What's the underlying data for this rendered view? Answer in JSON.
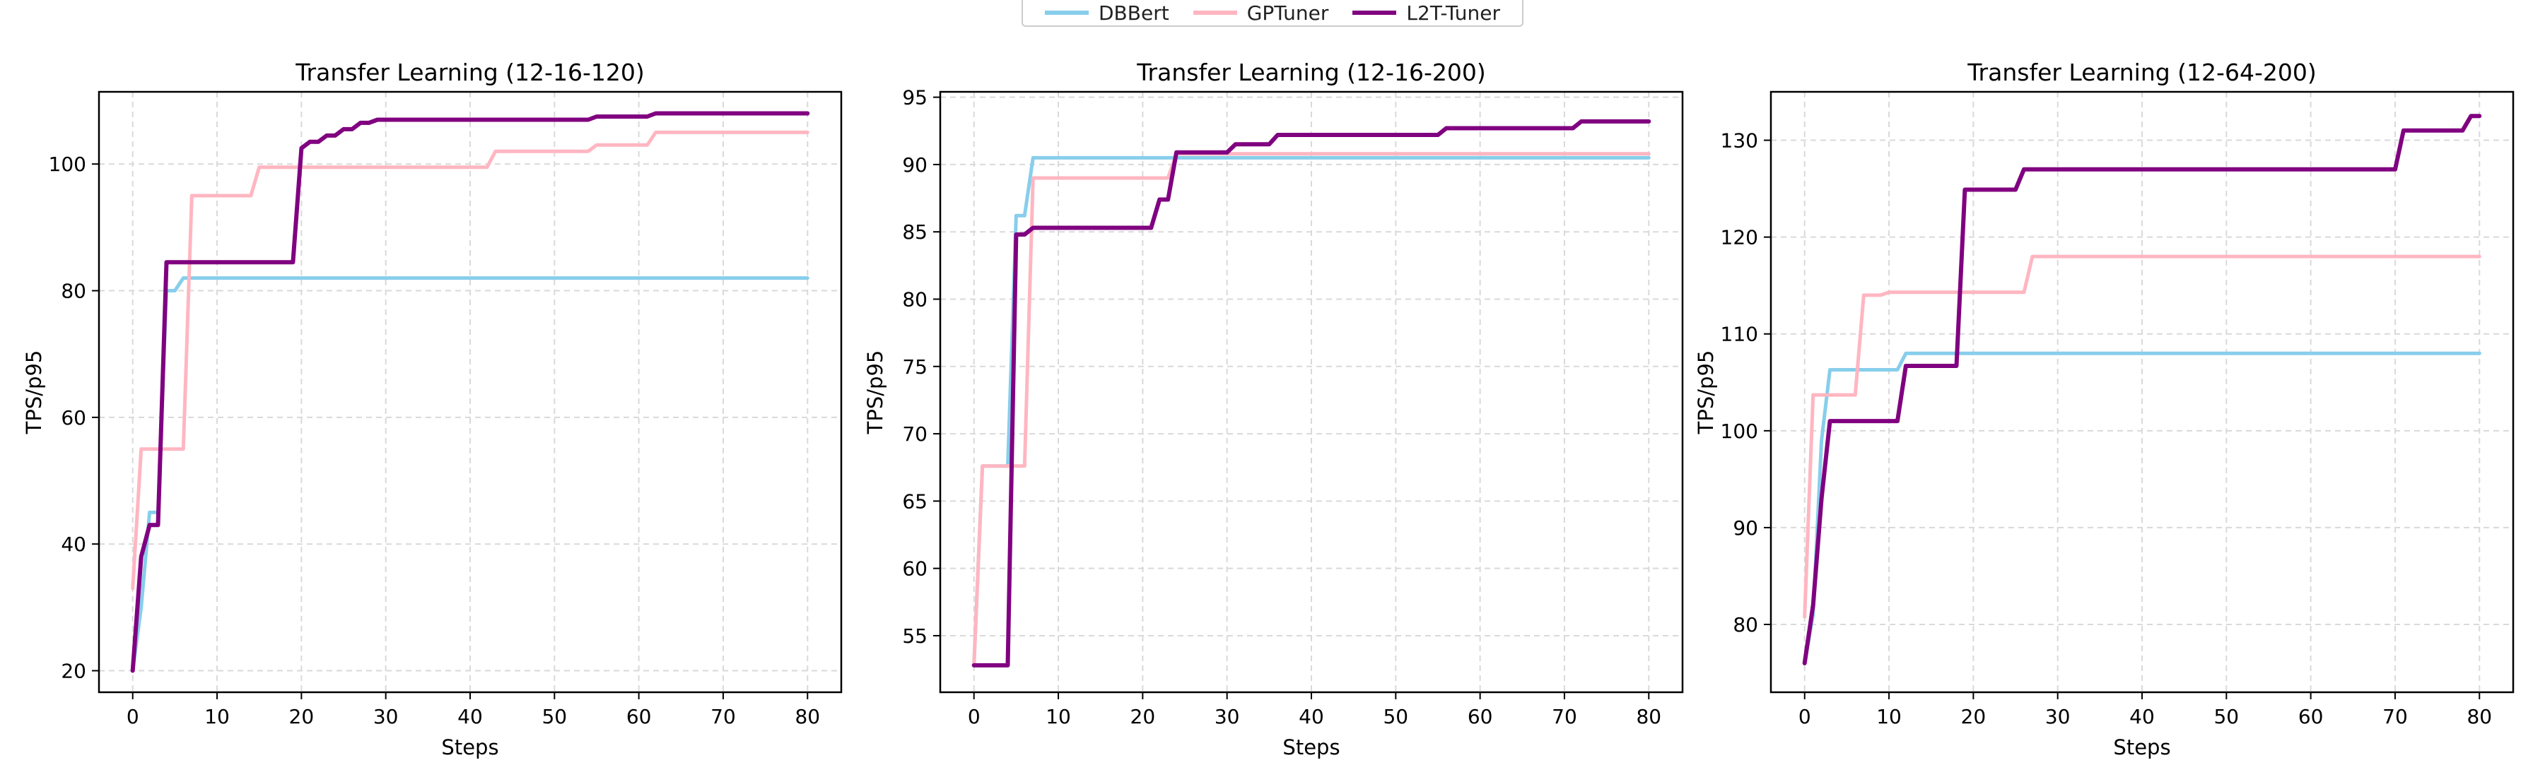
{
  "colors": {
    "DBBert": "#87ceeb",
    "GPTuner": "#ffb6c1",
    "L2T-Tuner": "#800080",
    "grid": "#d9d9d9",
    "axis": "#000000"
  },
  "legend": {
    "placement": "top-center",
    "entries": [
      "DBBert",
      "GPTuner",
      "L2T-Tuner"
    ]
  },
  "chart_data": [
    {
      "type": "line",
      "title": "Transfer Learning (12-16-120)",
      "xlabel": "Steps",
      "ylabel": "TPS/p95",
      "xlim": [
        -4,
        84
      ],
      "ylim": [
        16.6,
        111.4
      ],
      "xticks": [
        0,
        10,
        20,
        30,
        40,
        50,
        60,
        70,
        80
      ],
      "yticks": [
        20,
        40,
        60,
        80,
        100
      ],
      "grid": true,
      "series": [
        {
          "name": "DBBert",
          "x": [
            0,
            1,
            2,
            3,
            4,
            5,
            6,
            80
          ],
          "y": [
            20,
            30,
            45,
            45,
            80,
            80,
            82,
            82
          ]
        },
        {
          "name": "GPTuner",
          "x": [
            0,
            1,
            2,
            5,
            6,
            7,
            14,
            15,
            42,
            43,
            54,
            55,
            61,
            62,
            80
          ],
          "y": [
            33,
            55,
            55,
            55,
            55,
            95,
            95,
            99.5,
            99.5,
            102,
            102,
            103,
            103,
            105,
            105
          ]
        },
        {
          "name": "L2T-Tuner",
          "x": [
            0,
            1,
            2,
            3,
            4,
            19,
            20,
            21,
            22,
            23,
            24,
            25,
            26,
            27,
            28,
            29,
            54,
            55,
            61,
            62,
            80
          ],
          "y": [
            20,
            38,
            43,
            43,
            84.5,
            84.5,
            102.5,
            103.5,
            103.5,
            104.5,
            104.5,
            105.5,
            105.5,
            106.5,
            106.5,
            107,
            107,
            107.5,
            107.5,
            108,
            108
          ]
        }
      ]
    },
    {
      "type": "line",
      "title": "Transfer Learning (12-16-200)",
      "xlabel": "Steps",
      "ylabel": "TPS/p95",
      "xlim": [
        -4,
        84
      ],
      "ylim": [
        50.8,
        95.4
      ],
      "xticks": [
        0,
        10,
        20,
        30,
        40,
        50,
        60,
        70,
        80
      ],
      "yticks": [
        55,
        60,
        65,
        70,
        75,
        80,
        85,
        90,
        95
      ],
      "grid": true,
      "series": [
        {
          "name": "DBBert",
          "x": [
            0,
            1,
            4,
            5,
            6,
            7,
            80
          ],
          "y": [
            52.8,
            67.6,
            67.6,
            86.2,
            86.2,
            90.5,
            90.5
          ]
        },
        {
          "name": "GPTuner",
          "x": [
            0,
            1,
            5,
            6,
            7,
            23,
            24,
            80
          ],
          "y": [
            52.8,
            67.6,
            67.6,
            67.6,
            89,
            89,
            90.8,
            90.8
          ]
        },
        {
          "name": "L2T-Tuner",
          "x": [
            0,
            4,
            5,
            6,
            7,
            8,
            21,
            22,
            23,
            24,
            30,
            31,
            35,
            36,
            55,
            56,
            71,
            72,
            80
          ],
          "y": [
            52.8,
            52.8,
            84.8,
            84.8,
            85.3,
            85.3,
            85.3,
            87.4,
            87.4,
            90.9,
            90.9,
            91.5,
            91.5,
            92.2,
            92.2,
            92.7,
            92.7,
            93.2,
            93.2
          ]
        }
      ]
    },
    {
      "type": "line",
      "title": "Transfer Learning (12-64-200)",
      "xlabel": "Steps",
      "ylabel": "TPS/p95",
      "xlim": [
        -4,
        84
      ],
      "ylim": [
        73,
        135
      ],
      "xticks": [
        0,
        10,
        20,
        30,
        40,
        50,
        60,
        70,
        80
      ],
      "yticks": [
        80,
        90,
        100,
        110,
        120,
        130
      ],
      "grid": true,
      "series": [
        {
          "name": "DBBert",
          "x": [
            0,
            1,
            2,
            3,
            11,
            12,
            80
          ],
          "y": [
            76,
            81,
            99,
            106.3,
            106.3,
            108,
            108
          ]
        },
        {
          "name": "GPTuner",
          "x": [
            0,
            1,
            6,
            7,
            9,
            10,
            26,
            27,
            80
          ],
          "y": [
            80.8,
            103.7,
            103.7,
            114,
            114,
            114.3,
            114.3,
            118,
            118
          ]
        },
        {
          "name": "L2T-Tuner",
          "x": [
            0,
            1,
            2,
            3,
            11,
            12,
            18,
            19,
            25,
            26,
            70,
            71,
            78,
            79,
            80
          ],
          "y": [
            76,
            82,
            93,
            101,
            101,
            106.7,
            106.7,
            124.9,
            124.9,
            127,
            127,
            131,
            131,
            132.5,
            132.5
          ]
        }
      ]
    }
  ]
}
